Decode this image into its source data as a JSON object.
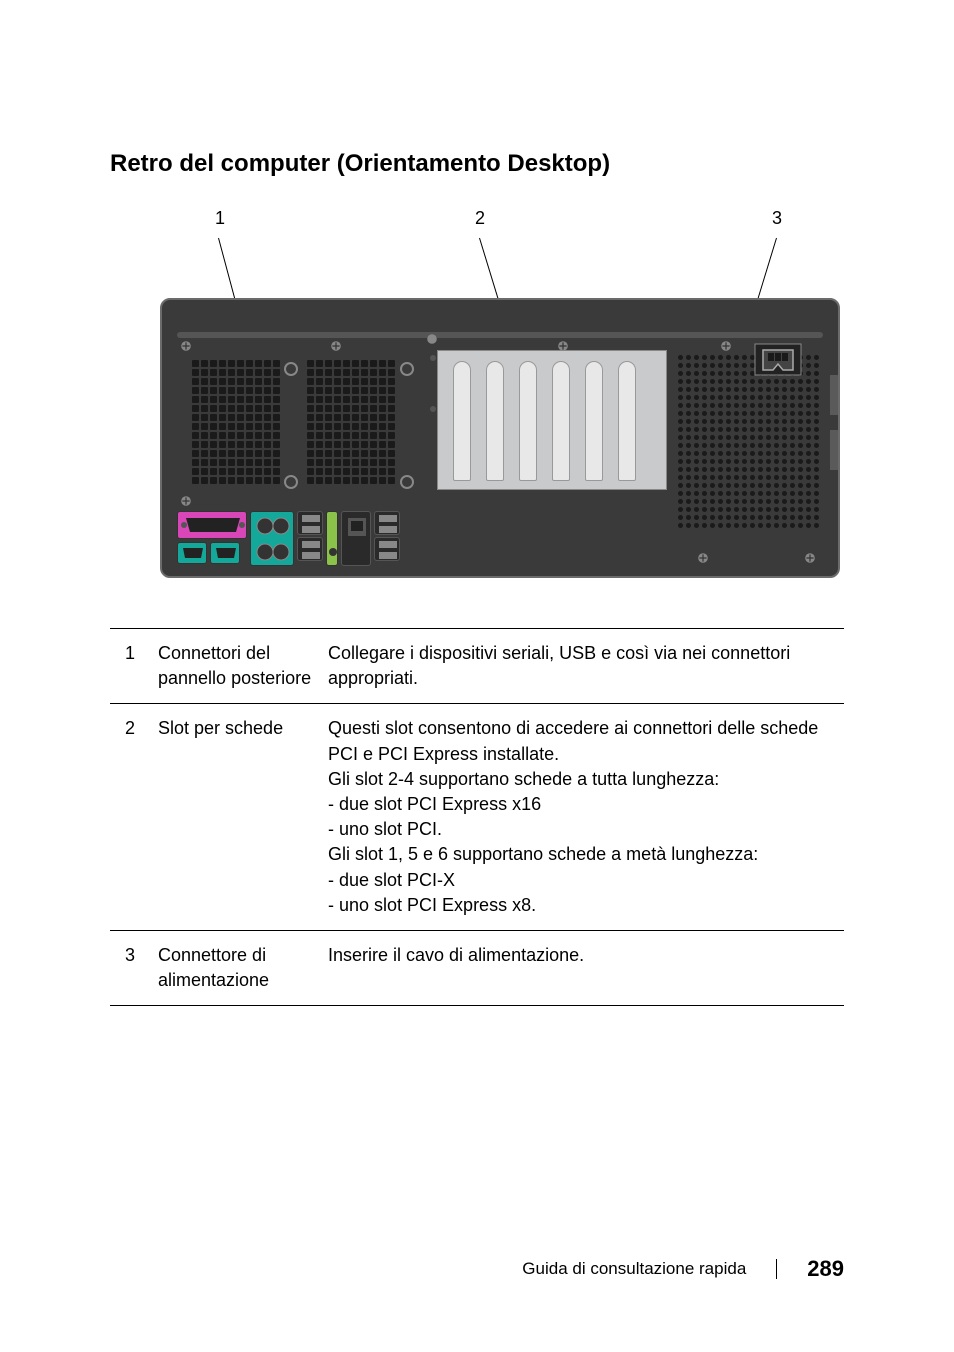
{
  "heading": "Retro del computer (Orientamento Desktop)",
  "callouts": {
    "c1": "1",
    "c2": "2",
    "c3": "3"
  },
  "diagram": {
    "chassis_color": "#3a3a3a",
    "chassis_border": "#6b6b6b",
    "slot_bg": "#c8cacc",
    "slot_color": "#e8e8e8",
    "port_colors": {
      "parallel": "#d946b8",
      "serial_vga": "#14a89a",
      "audio_lime": "#8bc34a",
      "usb": "#aaaaaa",
      "dark": "#2a2a2a"
    },
    "vent_color": "#1a1a1a",
    "screw_color": "#888888"
  },
  "table": {
    "rows": [
      {
        "num": "1",
        "label": "Connettori del pannello posteriore",
        "desc": "Collegare i dispositivi seriali, USB e così via nei connettori appropriati."
      },
      {
        "num": "2",
        "label": "Slot per schede",
        "desc": "Questi slot consentono di accedere ai connettori delle schede PCI e PCI Express installate.\nGli slot 2-4 supportano schede a tutta lunghezza:\n- due slot PCI Express x16\n- uno slot PCI.\nGli slot 1, 5 e 6 supportano schede a metà lunghezza:\n- due slot PCI-X\n- uno slot PCI Express x8."
      },
      {
        "num": "3",
        "label": "Connettore di alimentazione",
        "desc": "Inserire il cavo di alimentazione."
      }
    ]
  },
  "footer": {
    "title": "Guida di consultazione rapida",
    "page": "289"
  }
}
